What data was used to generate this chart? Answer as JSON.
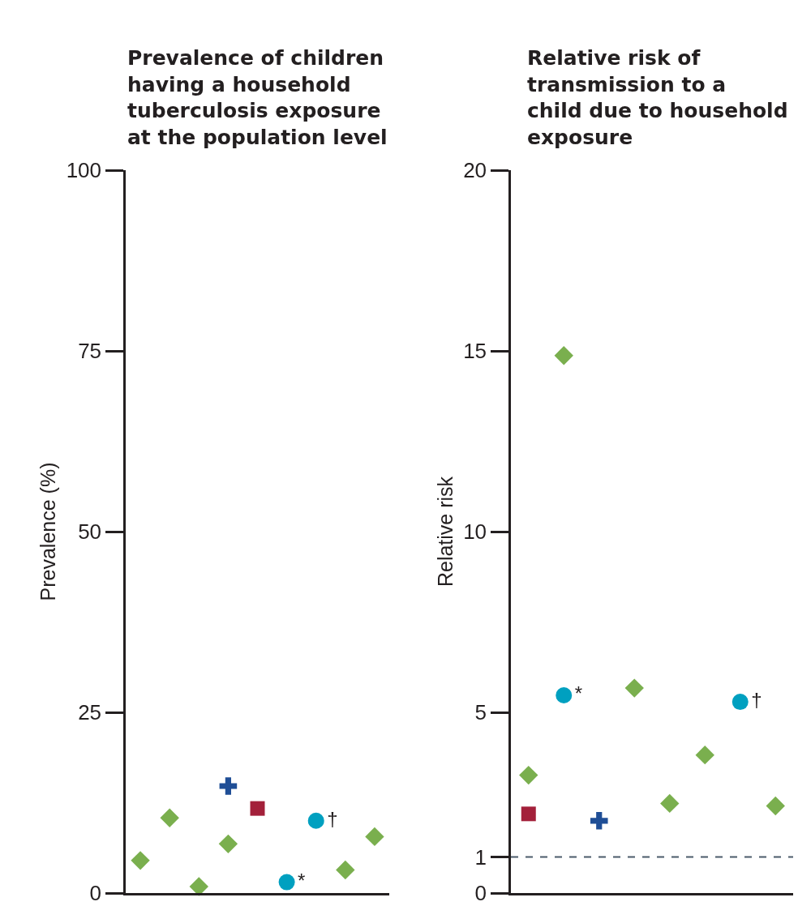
{
  "chart_data": [
    {
      "type": "scatter",
      "title": "Prevalence of children having a household tuberculosis exposure at the population level",
      "ylabel": "Prevalence (%)",
      "ylim": [
        0,
        100
      ],
      "yticks": [
        0,
        25,
        50,
        75,
        100
      ],
      "tick_labels": "y",
      "categories": [
        null,
        null,
        null,
        null,
        null,
        null,
        null,
        null,
        null
      ],
      "series": [
        {
          "color": "#7aaf4e",
          "marker": "diamond",
          "values": [
            4.5,
            10.4,
            0.9,
            6.8,
            null,
            null,
            null,
            3.2,
            7.8
          ]
        },
        {
          "color": "#00a0c0",
          "marker": "circle",
          "values": [
            null,
            null,
            null,
            null,
            null,
            1.5,
            10.0,
            null,
            null
          ],
          "value_labels": [
            null,
            null,
            null,
            null,
            null,
            "*",
            "†",
            null,
            null
          ]
        },
        {
          "color": "#1f4e96",
          "marker": "cross",
          "values": [
            null,
            null,
            null,
            14.8,
            null,
            null,
            null,
            null,
            null
          ]
        },
        {
          "color": "#a3203a",
          "marker": "square",
          "values": [
            null,
            null,
            null,
            null,
            11.7,
            null,
            null,
            null,
            null
          ]
        }
      ]
    },
    {
      "type": "scatter",
      "title": "Relative risk of transmission to a child due to household exposure",
      "ylabel": "Relative risk",
      "ylim": [
        0,
        20
      ],
      "yticks": [
        0,
        1,
        5,
        10,
        15,
        20
      ],
      "tick_labels": "y",
      "categories": [
        null,
        null,
        null,
        null,
        null,
        null,
        null,
        null
      ],
      "series": [
        {
          "color": "#7aaf4e",
          "marker": "diamond",
          "values": [
            3.26,
            14.87,
            null,
            5.67,
            2.48,
            3.82,
            null,
            2.41
          ]
        },
        {
          "color": "#00a0c0",
          "marker": "circle",
          "values": [
            null,
            5.47,
            null,
            null,
            null,
            null,
            5.29,
            null
          ],
          "value_labels": [
            null,
            "*",
            null,
            null,
            null,
            null,
            "†",
            null
          ]
        },
        {
          "color": "#1f4e96",
          "marker": "cross",
          "values": [
            null,
            null,
            2.0,
            null,
            null,
            null,
            null,
            null
          ]
        },
        {
          "color": "#a3203a",
          "marker": "square",
          "values": [
            2.19,
            null,
            null,
            null,
            null,
            null,
            null,
            null
          ]
        }
      ],
      "ref_lines": [
        {
          "axis": "y",
          "value": 1,
          "color": "#4a5a6a",
          "line_style": "dashed"
        }
      ]
    }
  ]
}
